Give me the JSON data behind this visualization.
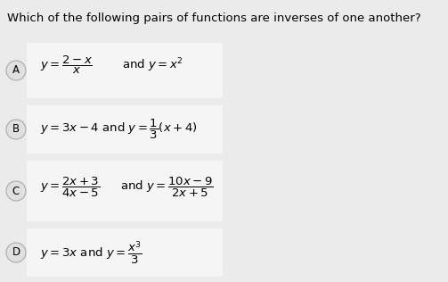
{
  "title": "Which of the following pairs of functions are inverses of one another?",
  "title_fontsize": 9.5,
  "bg_color": "#ebebeb",
  "box_color": "#f5f5f5",
  "text_color": "#000000",
  "circle_color": "#e0e0e0",
  "circle_edge_color": "#aaaaaa",
  "options": [
    "A",
    "B",
    "C",
    "D"
  ],
  "formulas": [
    "A",
    "B",
    "C",
    "D"
  ],
  "fig_w": 5.03,
  "fig_h": 3.16,
  "dpi": 100
}
